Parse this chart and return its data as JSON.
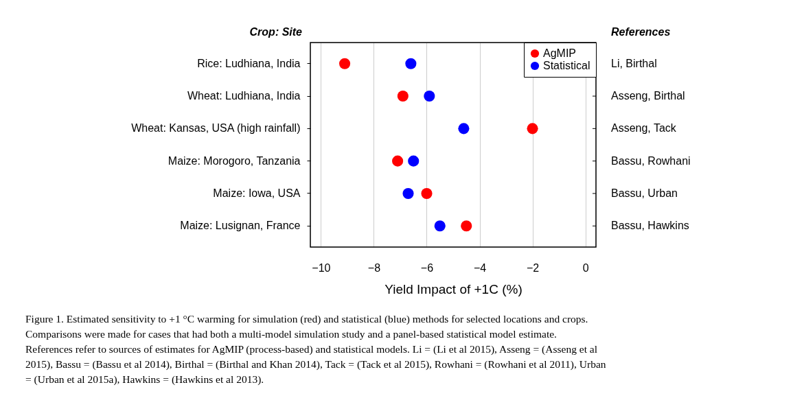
{
  "chart_data": {
    "type": "scatter",
    "orientation": "horizontal",
    "xlabel": "Yield Impact of +1C (%)",
    "categories": [
      "Rice: Ludhiana, India",
      "Wheat: Ludhiana, India",
      "Wheat: Kansas, USA (high rainfall)",
      "Maize: Morogoro, Tanzania",
      "Maize: Iowa, USA",
      "Maize: Lusignan, France"
    ],
    "series": [
      {
        "name": "AgMIP",
        "color": "#ff0000",
        "values": [
          -9.1,
          -6.9,
          -2.0,
          -7.1,
          -6.0,
          -4.5
        ]
      },
      {
        "name": "Statistical",
        "color": "#0000ff",
        "values": [
          -6.6,
          -5.9,
          -4.6,
          -6.5,
          -6.7,
          -5.5
        ]
      }
    ],
    "xlim": [
      -10.4,
      0.4
    ],
    "xticks": [
      -10,
      -8,
      -6,
      -4,
      -2,
      0
    ],
    "grid": "x",
    "legend": "top right",
    "marker": "circle",
    "annotations": [
      "Crop: Site",
      "References",
      "Li, Birthal",
      "Asseng, Birthal",
      "Asseng, Tack",
      "Bassu, Rowhani",
      "Bassu, Urban",
      "Bassu, Hawkins",
      "Figure 1.  Estimated sensitivity to +1 °C warming for simulation (red) and statistical (blue) methods for selected locations and crops.\nComparisons were made for cases that had both a multi-model simulation study and a panel-based statistical model estimate.\nReferences refer to sources of estimates for AgMIP (process-based) and statistical models. Li = (Li et al 2015), Asseng = (Asseng et al\n2015), Bassu = (Bassu et al 2014), Birthal = (Birthal and Khan 2014), Tack = (Tack et al 2015), Rowhani = (Rowhani et al 2011), Urban\n= (Urban et al 2015a), Hawkins = (Hawkins et al 2013)."
    ]
  }
}
